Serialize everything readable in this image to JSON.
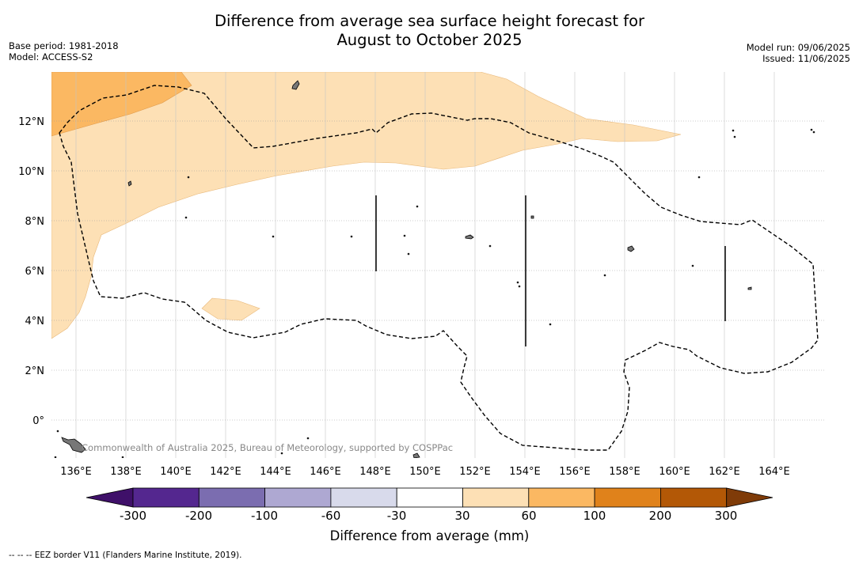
{
  "title": {
    "line1": "Difference from average sea surface height forecast for",
    "line2": "August to October 2025"
  },
  "meta": {
    "base_period": "Base period: 1981-2018",
    "model": "Model: ACCESS-S2",
    "model_run": "Model run: 09/06/2025",
    "issued": "Issued: 11/06/2025"
  },
  "map": {
    "lon_ticks": [
      "136°E",
      "138°E",
      "140°E",
      "142°E",
      "144°E",
      "146°E",
      "148°E",
      "150°E",
      "152°E",
      "154°E",
      "156°E",
      "158°E",
      "160°E",
      "162°E",
      "164°E"
    ],
    "lat_ticks": [
      "12°N",
      "10°N",
      "8°N",
      "6°N",
      "4°N",
      "2°N",
      "0°"
    ],
    "watermark": "Commonwealth of Australia 2025, Bureau of Meteorology, supported by COSPPac",
    "fill_colors": {
      "30_60": "#fde0b5",
      "60_100": "#fbb862"
    }
  },
  "colorbar": {
    "title": "Difference from average (mm)",
    "labels": [
      "-300",
      "-200",
      "-100",
      "-60",
      "-30",
      "30",
      "60",
      "100",
      "200",
      "300"
    ],
    "colors": [
      "#3f1069",
      "#54278f",
      "#7b6db0",
      "#aea8d2",
      "#d8daeb",
      "#ffffff",
      "#fde0b5",
      "#fbb862",
      "#e0821b",
      "#b35806",
      "#7f3b08"
    ]
  },
  "footer": "--  --  -- EEZ border V11 (Flanders Marine Institute, 2019)."
}
